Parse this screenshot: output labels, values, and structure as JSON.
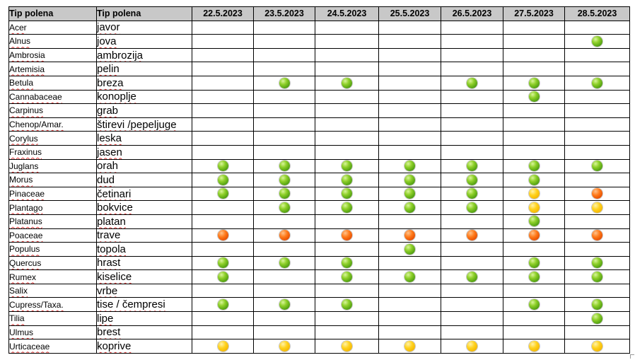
{
  "header": {
    "col1": "Tip polena",
    "col2": "Tip polena",
    "dates": [
      "22.5.2023",
      "23.5.2023",
      "24.5.2023",
      "25.5.2023",
      "26.5.2023",
      "27.5.2023",
      "28.5.2023"
    ]
  },
  "legend_colors": {
    "green": "#6cc21a",
    "yellow": "#ffcc00",
    "orange": "#f05a0a"
  },
  "rows": [
    {
      "latin": "Acer",
      "local": "javor",
      "levels": [
        "",
        "",
        "",
        "",
        "",
        "",
        ""
      ]
    },
    {
      "latin": "Alnus",
      "local": "jova",
      "levels": [
        "",
        "",
        "",
        "",
        "",
        "",
        "green"
      ]
    },
    {
      "latin": "Ambrosia",
      "local": "ambrozija",
      "levels": [
        "",
        "",
        "",
        "",
        "",
        "",
        ""
      ]
    },
    {
      "latin": "Artemisia",
      "local": "pelin",
      "levels": [
        "",
        "",
        "",
        "",
        "",
        "",
        ""
      ]
    },
    {
      "latin": "Betula",
      "local": "breza",
      "levels": [
        "",
        "green",
        "green",
        "",
        "green",
        "green",
        "green"
      ]
    },
    {
      "latin": "Cannabaceae",
      "local": "konoplje",
      "levels": [
        "",
        "",
        "",
        "",
        "",
        "green",
        ""
      ]
    },
    {
      "latin": "Carpinus",
      "local": "grab",
      "levels": [
        "",
        "",
        "",
        "",
        "",
        "",
        ""
      ]
    },
    {
      "latin": "Chenop/Amar.",
      "local": "štirevi /pepeljuge",
      "levels": [
        "",
        "",
        "",
        "",
        "",
        "",
        ""
      ]
    },
    {
      "latin": "Corylus",
      "local": "leska",
      "levels": [
        "",
        "",
        "",
        "",
        "",
        "",
        ""
      ]
    },
    {
      "latin": "Fraxinus",
      "local": "jasen",
      "levels": [
        "",
        "",
        "",
        "",
        "",
        "",
        ""
      ]
    },
    {
      "latin": "Juglans",
      "local": "orah",
      "levels": [
        "green",
        "green",
        "green",
        "green",
        "green",
        "green",
        "green"
      ]
    },
    {
      "latin": "Morus",
      "local": "dud",
      "levels": [
        "green",
        "green",
        "green",
        "green",
        "green",
        "green",
        ""
      ]
    },
    {
      "latin": "Pinaceae",
      "local": "četinari",
      "levels": [
        "green",
        "green",
        "green",
        "green",
        "green",
        "yellow",
        "orange"
      ]
    },
    {
      "latin": "Plantago",
      "local": "bokvice",
      "levels": [
        "",
        "green",
        "green",
        "green",
        "green",
        "yellow",
        "yellow"
      ]
    },
    {
      "latin": "Platanus",
      "local": "platan",
      "levels": [
        "",
        "",
        "",
        "",
        "",
        "green",
        ""
      ]
    },
    {
      "latin": "Poaceae",
      "local": "trave",
      "levels": [
        "orange",
        "orange",
        "orange",
        "orange",
        "orange",
        "orange",
        "orange"
      ]
    },
    {
      "latin": "Populus",
      "local": "topola",
      "levels": [
        "",
        "",
        "",
        "green",
        "",
        "",
        ""
      ]
    },
    {
      "latin": "Quercus",
      "local": "hrast",
      "levels": [
        "green",
        "green",
        "green",
        "",
        "",
        "green",
        "green"
      ]
    },
    {
      "latin": "Rumex",
      "local": "kiselice",
      "levels": [
        "green",
        "",
        "green",
        "green",
        "green",
        "green",
        "green"
      ]
    },
    {
      "latin": "Salix",
      "local": "vrbe",
      "levels": [
        "",
        "",
        "",
        "",
        "",
        "",
        ""
      ]
    },
    {
      "latin": "Cupress/Taxa.",
      "local": "tise / čempresi",
      "levels": [
        "green",
        "green",
        "green",
        "",
        "",
        "green",
        "green"
      ]
    },
    {
      "latin": "Tilia",
      "local": "lipe",
      "levels": [
        "",
        "",
        "",
        "",
        "",
        "",
        "green"
      ]
    },
    {
      "latin": "Ulmus",
      "local": "brest",
      "levels": [
        "",
        "",
        "",
        "",
        "",
        "",
        ""
      ]
    },
    {
      "latin": "Urticaceae",
      "local": "koprive",
      "levels": [
        "yellow",
        "yellow",
        "yellow",
        "yellow",
        "yellow",
        "yellow",
        "yellow"
      ]
    }
  ]
}
